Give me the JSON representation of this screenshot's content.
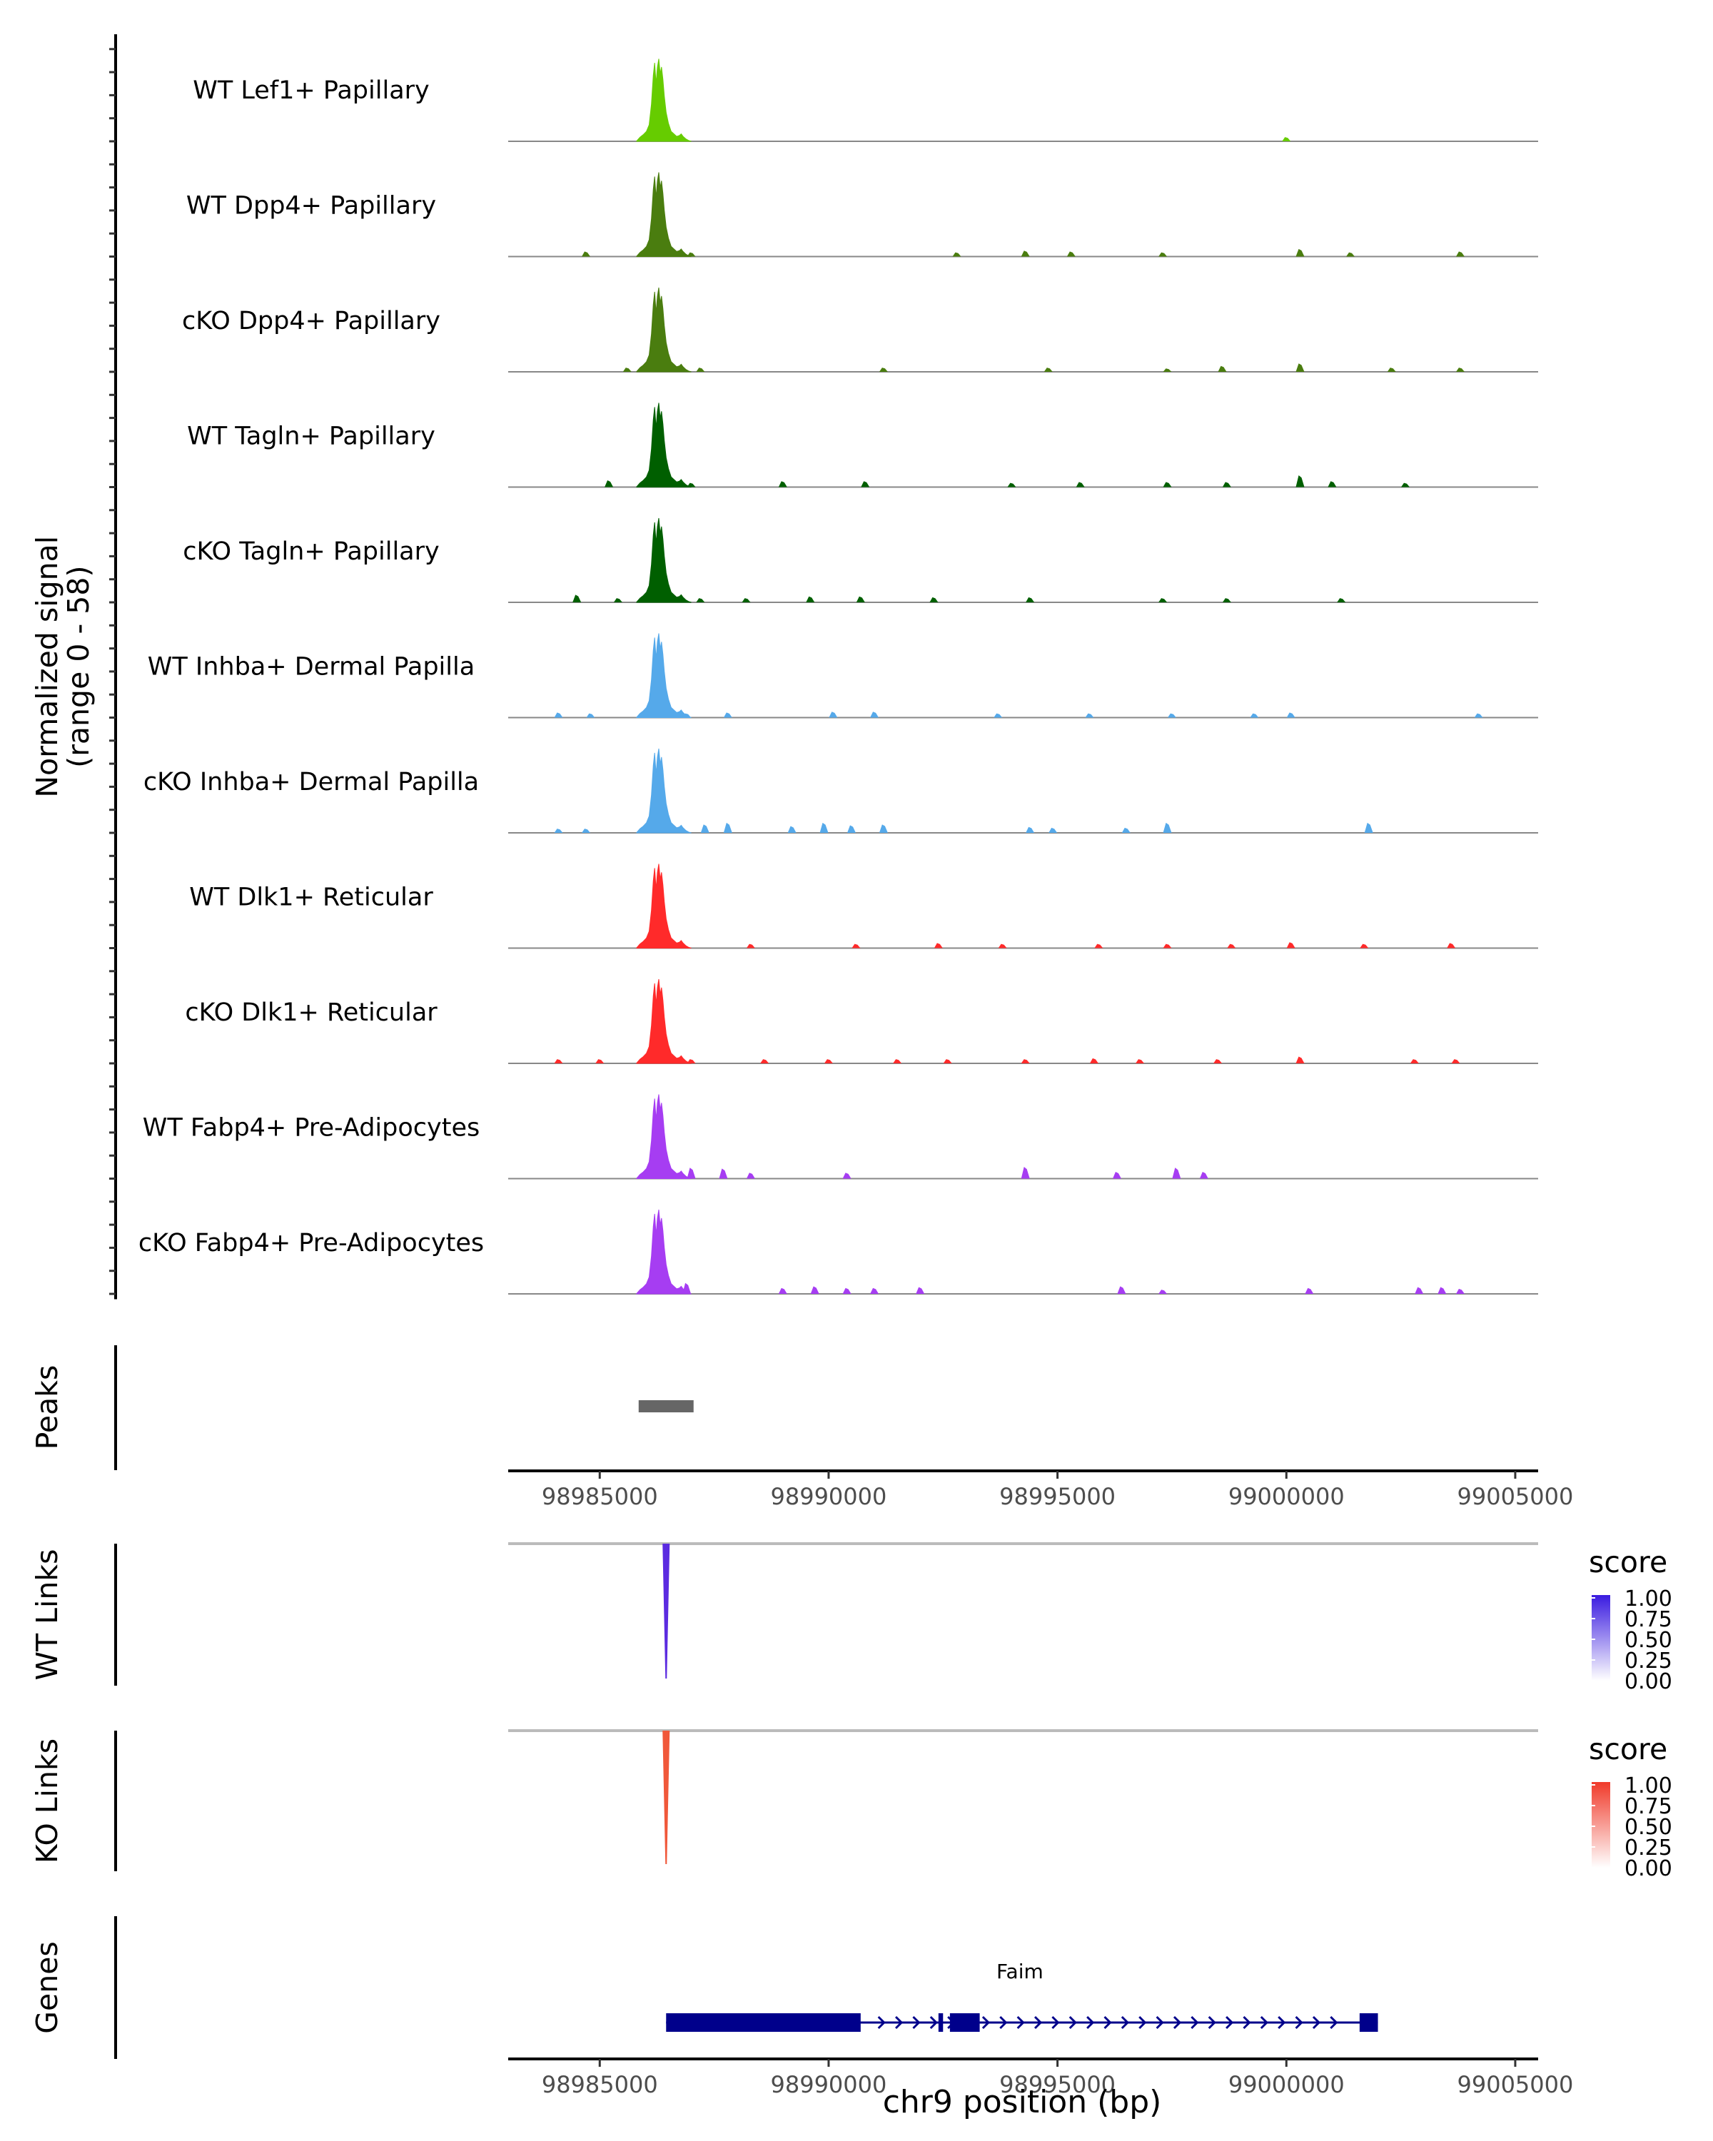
{
  "chart_data": {
    "type": "area",
    "title": "",
    "y_axis_label": "Normalized signal",
    "y_axis_sublabel": "(range 0 - 58)",
    "ylim": [
      0,
      58
    ],
    "xlabel": "chr9 position (bp)",
    "xlim": [
      98983000,
      99005500
    ],
    "xticks": [
      98985000,
      98990000,
      98995000,
      99000000,
      99005000
    ],
    "xtick_labels": [
      "98985000",
      "98990000",
      "98995000",
      "99000000",
      "99005000"
    ],
    "tracks": [
      {
        "name": "WT Lef1+ Papillary",
        "color": "#66CC00",
        "peak": 0.98,
        "noise": [
          [
            99000000,
            0.05
          ]
        ]
      },
      {
        "name": "WT Dpp4+ Papillary",
        "color": "#4A7D0F",
        "peak": 1.0,
        "noise": [
          [
            98984700,
            0.06
          ],
          [
            98987000,
            0.05
          ],
          [
            98992800,
            0.05
          ],
          [
            98994300,
            0.07
          ],
          [
            98995300,
            0.06
          ],
          [
            98997300,
            0.05
          ],
          [
            99000300,
            0.09
          ],
          [
            99001400,
            0.05
          ],
          [
            99003800,
            0.06
          ]
        ]
      },
      {
        "name": "cKO Dpp4+ Papillary",
        "color": "#4A7D0F",
        "peak": 1.0,
        "noise": [
          [
            98985600,
            0.05
          ],
          [
            98987200,
            0.05
          ],
          [
            98991200,
            0.05
          ],
          [
            98994800,
            0.05
          ],
          [
            98997400,
            0.04
          ],
          [
            98998600,
            0.07
          ],
          [
            99000300,
            0.1
          ],
          [
            99002300,
            0.05
          ],
          [
            99003800,
            0.05
          ]
        ]
      },
      {
        "name": "WT Tagln+ Papillary",
        "color": "#005F00",
        "peak": 1.0,
        "noise": [
          [
            98985200,
            0.08
          ],
          [
            98987000,
            0.05
          ],
          [
            98989000,
            0.07
          ],
          [
            98990800,
            0.07
          ],
          [
            98994000,
            0.05
          ],
          [
            98995500,
            0.06
          ],
          [
            98997400,
            0.06
          ],
          [
            98998700,
            0.06
          ],
          [
            99000300,
            0.14
          ],
          [
            99001000,
            0.07
          ],
          [
            99002600,
            0.05
          ]
        ]
      },
      {
        "name": "cKO Tagln+ Papillary",
        "color": "#005F00",
        "peak": 1.0,
        "noise": [
          [
            98984500,
            0.09
          ],
          [
            98985400,
            0.05
          ],
          [
            98987200,
            0.05
          ],
          [
            98988200,
            0.05
          ],
          [
            98989600,
            0.07
          ],
          [
            98990700,
            0.07
          ],
          [
            98992300,
            0.06
          ],
          [
            98994400,
            0.06
          ],
          [
            98997300,
            0.05
          ],
          [
            98998700,
            0.05
          ],
          [
            99001200,
            0.05
          ]
        ]
      },
      {
        "name": "WT Inhba+ Dermal Papilla",
        "color": "#55A9EA",
        "peak": 1.0,
        "noise": [
          [
            98984100,
            0.06
          ],
          [
            98984800,
            0.05
          ],
          [
            98986900,
            0.05
          ],
          [
            98987800,
            0.06
          ],
          [
            98990100,
            0.07
          ],
          [
            98991000,
            0.07
          ],
          [
            98993700,
            0.05
          ],
          [
            98995700,
            0.05
          ],
          [
            98997500,
            0.05
          ],
          [
            98999300,
            0.05
          ],
          [
            99000100,
            0.06
          ],
          [
            99004200,
            0.05
          ]
        ]
      },
      {
        "name": "cKO Inhba+ Dermal Papilla",
        "color": "#55A9EA",
        "peak": 1.0,
        "noise": [
          [
            98984100,
            0.05
          ],
          [
            98984700,
            0.05
          ],
          [
            98987300,
            0.1
          ],
          [
            98987800,
            0.12
          ],
          [
            98989200,
            0.08
          ],
          [
            98989900,
            0.12
          ],
          [
            98990500,
            0.09
          ],
          [
            98991200,
            0.1
          ],
          [
            98994400,
            0.07
          ],
          [
            98994900,
            0.06
          ],
          [
            98996500,
            0.06
          ],
          [
            98997400,
            0.12
          ],
          [
            99001800,
            0.12
          ]
        ]
      },
      {
        "name": "WT Dlk1+ Reticular",
        "color": "#FF2A2A",
        "peak": 1.0,
        "noise": [
          [
            98988300,
            0.05
          ],
          [
            98990600,
            0.05
          ],
          [
            98992400,
            0.06
          ],
          [
            98993800,
            0.05
          ],
          [
            98995900,
            0.05
          ],
          [
            98997400,
            0.05
          ],
          [
            98998800,
            0.05
          ],
          [
            99000100,
            0.07
          ],
          [
            99001700,
            0.05
          ],
          [
            99003600,
            0.06
          ]
        ]
      },
      {
        "name": "cKO Dlk1+ Reticular",
        "color": "#FF2A2A",
        "peak": 1.0,
        "noise": [
          [
            98984100,
            0.05
          ],
          [
            98985000,
            0.05
          ],
          [
            98987000,
            0.05
          ],
          [
            98988600,
            0.05
          ],
          [
            98990000,
            0.05
          ],
          [
            98991500,
            0.05
          ],
          [
            98992600,
            0.05
          ],
          [
            98994300,
            0.05
          ],
          [
            98995800,
            0.06
          ],
          [
            98996800,
            0.05
          ],
          [
            98998500,
            0.05
          ],
          [
            99000300,
            0.08
          ],
          [
            99002800,
            0.05
          ],
          [
            99003700,
            0.05
          ]
        ]
      },
      {
        "name": "WT Fabp4+ Pre-Adipocytes",
        "color": "#A63DF2",
        "peak": 1.0,
        "noise": [
          [
            98987000,
            0.13
          ],
          [
            98987700,
            0.12
          ],
          [
            98988300,
            0.07
          ],
          [
            98990400,
            0.07
          ],
          [
            98994300,
            0.14
          ],
          [
            98996300,
            0.08
          ],
          [
            98997600,
            0.13
          ],
          [
            98998200,
            0.08
          ]
        ]
      },
      {
        "name": "cKO Fabp4+ Pre-Adipocytes",
        "color": "#A63DF2",
        "peak": 1.0,
        "noise": [
          [
            98986900,
            0.13
          ],
          [
            98989000,
            0.07
          ],
          [
            98989700,
            0.09
          ],
          [
            98990400,
            0.07
          ],
          [
            98991000,
            0.07
          ],
          [
            98992000,
            0.08
          ],
          [
            98996400,
            0.09
          ],
          [
            98997300,
            0.05
          ],
          [
            99000500,
            0.07
          ],
          [
            99002900,
            0.08
          ],
          [
            99003400,
            0.08
          ],
          [
            99003800,
            0.06
          ]
        ]
      }
    ],
    "peak_center_bp": 98986300,
    "peaks_track": {
      "label": "Peaks",
      "regions": [
        [
          98985850,
          98987050
        ]
      ],
      "color": "#666666"
    },
    "links": [
      {
        "label": "WT Links",
        "position_bp": 98986450,
        "score": 1.0,
        "color": "#5B2BE0",
        "legend_title": "score",
        "legend_ticks": [
          "1.00",
          "0.75",
          "0.50",
          "0.25",
          "0.00"
        ],
        "legend_color_high": "#3A1BE0"
      },
      {
        "label": "KO Links",
        "position_bp": 98986450,
        "score": 1.0,
        "color": "#F0583A",
        "legend_title": "score",
        "legend_ticks": [
          "1.00",
          "0.75",
          "0.50",
          "0.25",
          "0.00"
        ],
        "legend_color_high": "#F03A2A"
      }
    ],
    "genes_track": {
      "label": "Genes",
      "gene_name": "Faim",
      "gene_start": 98986450,
      "gene_end": 99002000,
      "strand": "+",
      "exons": [
        [
          98986450,
          98990700
        ],
        [
          98992400,
          98992500
        ],
        [
          98992650,
          98993300
        ],
        [
          99001600,
          99002000
        ]
      ],
      "color": "#00008B"
    }
  }
}
